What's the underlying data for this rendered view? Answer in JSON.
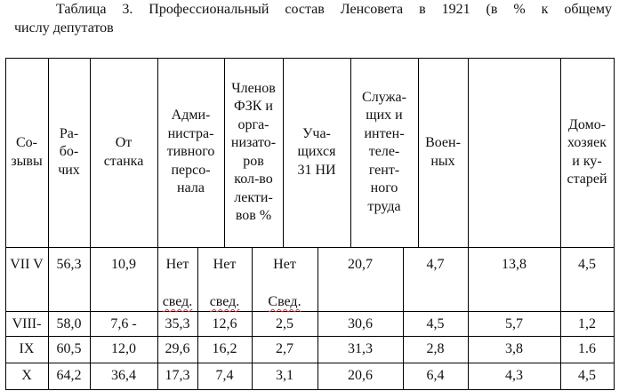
{
  "caption": {
    "line1": "Таблица 3. Профессиональный состав Ленсовета в 1921 (в % к общему",
    "line2": "числу депутатов"
  },
  "table": {
    "headers": [
      "Со-\nзывы",
      "Ра-\nбо-\nчих",
      "От\nстанка",
      "Адми-\nнистра-\nтивного\nперсо-\nнала",
      "Членов\nФЗК и\nорга-\nнизато-\nров\nкол-во\nлекти-\nвов %",
      "Уча-\nщихся\n31 НИ",
      "Служа-\nщих и\nинтен-\nтеле-\nгент-\nного\nтруда",
      "Воен-\nных",
      "",
      "Домо-\nхозяек\nи ку-\nстарей"
    ],
    "rows": [
      {
        "values": [
          "VII V",
          "56,3",
          "10,9",
          "Нет",
          "Нет",
          "Нет",
          "20,7",
          "4,7",
          "13,8",
          "4,5"
        ],
        "notes": [
          "",
          "",
          "",
          "свед.",
          "свед.",
          "Свед.",
          "",
          "",
          "",
          ""
        ]
      },
      {
        "values": [
          "VIII-",
          "58,0",
          "7,6 -",
          "35,3",
          "12,6",
          "2,5",
          "30,6",
          "4,5",
          "5,7",
          "1,2"
        ]
      },
      {
        "values": [
          "IX",
          "60,5",
          "12,0",
          "29,6",
          "16,2",
          "2,7",
          "31,3",
          "2,8",
          "3,8",
          "1.6"
        ]
      },
      {
        "values": [
          "X",
          "64,2",
          "36,4",
          "17,3",
          "7,4",
          "3,1",
          "20,6",
          "6,4",
          "4,3",
          "4,5"
        ]
      }
    ]
  }
}
